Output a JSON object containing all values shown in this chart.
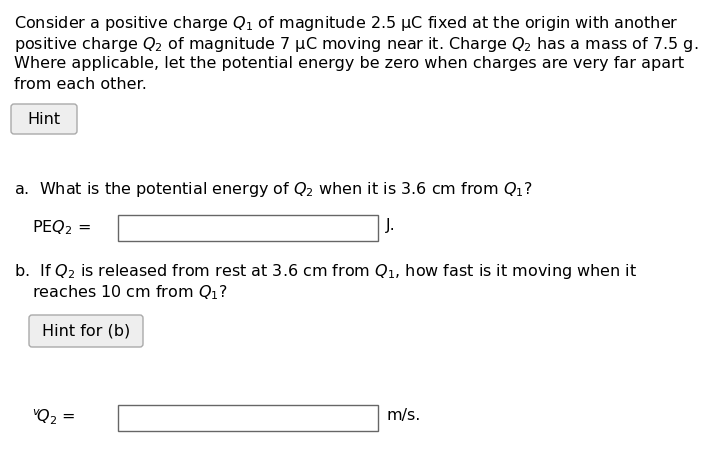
{
  "bg_color": "#ffffff",
  "text_color": "#000000",
  "para_lines": [
    "Consider a positive charge $Q_1$ of magnitude 2.5 μC fixed at the origin with another",
    "positive charge $Q_2$ of magnitude 7 μC moving near it. Charge $Q_2$ has a mass of 7.5 g.",
    "Where applicable, let the potential energy be zero when charges are very far apart",
    "from each other."
  ],
  "hint_label": "Hint",
  "question_a": "a.  What is the potential energy of $Q_2$ when it is 3.6 cm from $Q_1$?",
  "peq2_label": "PE$Q_2$ =",
  "peq2_unit": "J.",
  "question_b_line1": "b.  If $Q_2$ is released from rest at 3.6 cm from $Q_1$, how fast is it moving when it",
  "question_b_line2": "     reaches 10 cm from $Q_1$?",
  "hint_b_label": "Hint for (b)",
  "vq2_label": "$^v\\!Q2$ =",
  "vq2_unit": "m/s.",
  "font_size_main": 11.5,
  "fig_width": 7.09,
  "fig_height": 4.72,
  "dpi": 100
}
